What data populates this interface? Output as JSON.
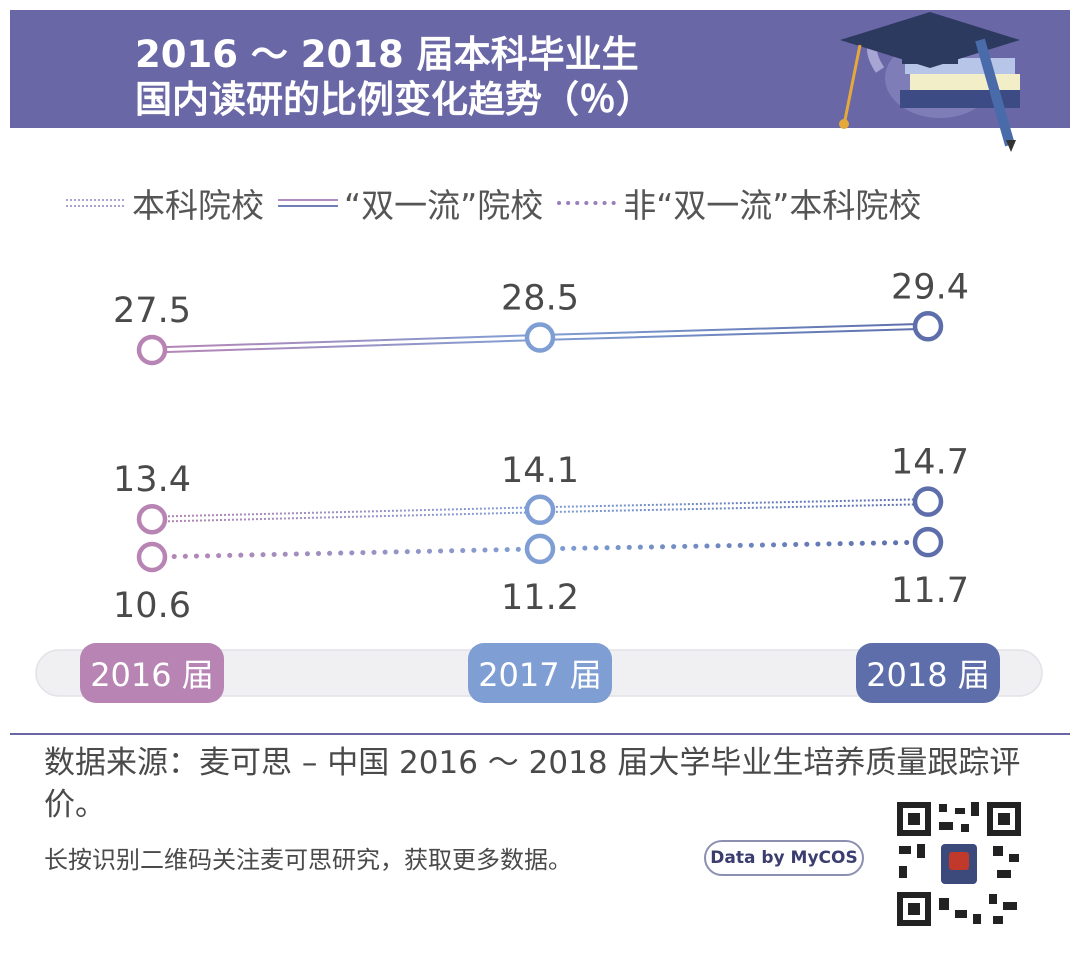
{
  "header": {
    "title_line1": "2016 ～ 2018 届本科毕业生",
    "title_line2": "国内读研的比例变化趋势（％）"
  },
  "legend": {
    "items": [
      {
        "label": "本科院校",
        "style": "double-dotted"
      },
      {
        "label": "“双一流”院校",
        "style": "double-solid"
      },
      {
        "label": "非“双一流”本科院校",
        "style": "dotted"
      }
    ]
  },
  "chart_data": {
    "type": "line",
    "categories": [
      "2016 届",
      "2017 届",
      "2018 届"
    ],
    "series": [
      {
        "name": "“双一流”院校",
        "values": [
          27.5,
          28.5,
          29.4
        ]
      },
      {
        "name": "本科院校",
        "values": [
          13.4,
          14.1,
          14.7
        ]
      },
      {
        "name": "非“双一流”本科院校",
        "values": [
          10.6,
          11.2,
          11.7
        ]
      }
    ],
    "category_colors": [
      "#b784b4",
      "#7f9ed3",
      "#5d6eab"
    ]
  },
  "footer": {
    "source": "数据来源：麦可思 – 中国 2016 ～ 2018 届大学毕业生培养质量跟踪评价。",
    "follow": "长按识别二维码关注麦可思研究，获取更多数据。",
    "badge": "Data by MyCOS"
  },
  "icons": {
    "header": "graduation-cap-books-icon",
    "footer": "qr-code-icon"
  }
}
